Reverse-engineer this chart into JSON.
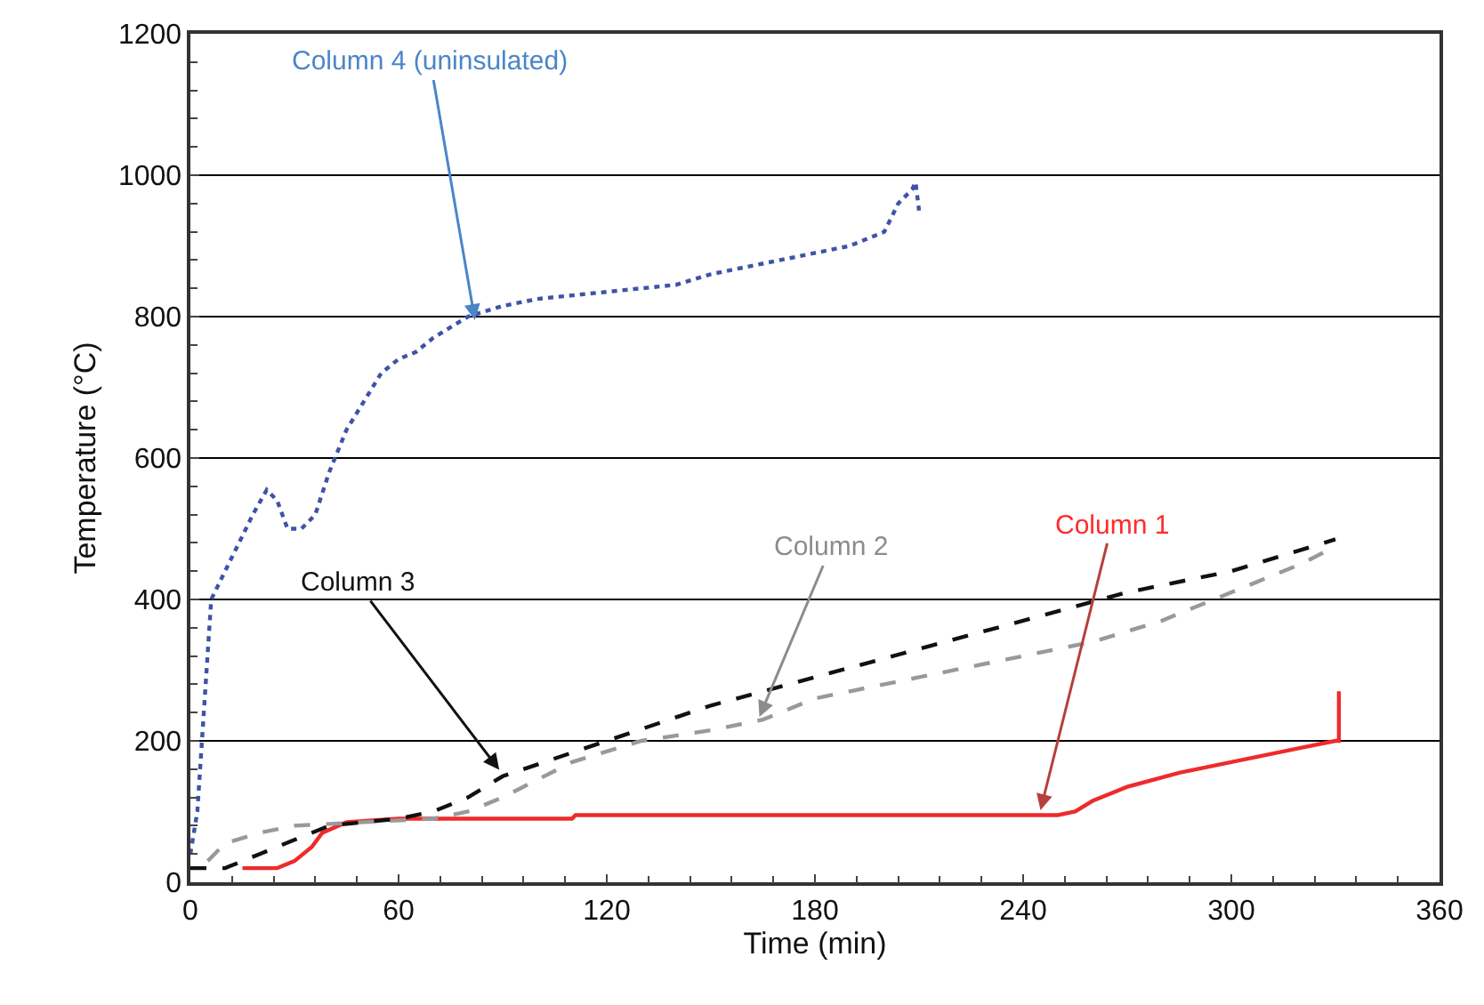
{
  "chart_data": {
    "type": "line",
    "xlabel": "Time (min)",
    "ylabel": "Temperature (°C)",
    "xlim": [
      0,
      360
    ],
    "xticks": [
      0,
      60,
      120,
      180,
      240,
      300,
      360
    ],
    "ylim": [
      0,
      1200
    ],
    "yticks": [
      0,
      200,
      400,
      600,
      800,
      1000,
      1200
    ],
    "grid": "y",
    "legend": false,
    "series": [
      {
        "color": "#ee2b2b",
        "line_style": "solid",
        "x": [
          15,
          25,
          30,
          35,
          38,
          45,
          60,
          110,
          111,
          240,
          250,
          255,
          260,
          270,
          285,
          300,
          320,
          330,
          331,
          331
        ],
        "values": [
          20,
          20,
          30,
          50,
          70,
          85,
          90,
          90,
          95,
          95,
          95,
          100,
          115,
          135,
          155,
          170,
          190,
          200,
          200,
          270
        ]
      },
      {
        "color": "#999999",
        "line_style": "dashed",
        "x": [
          5,
          10,
          20,
          30,
          50,
          70,
          80,
          90,
          110,
          130,
          150,
          165,
          180,
          210,
          240,
          260,
          280,
          300,
          320,
          330
        ],
        "values": [
          30,
          55,
          70,
          80,
          85,
          90,
          100,
          120,
          170,
          200,
          215,
          230,
          260,
          290,
          320,
          340,
          370,
          410,
          450,
          475
        ]
      },
      {
        "color": "#111111",
        "line_style": "dashed",
        "x": [
          0,
          10,
          20,
          30,
          40,
          60,
          70,
          80,
          90,
          120,
          150,
          180,
          210,
          240,
          270,
          300,
          330
        ],
        "values": [
          20,
          20,
          40,
          60,
          80,
          90,
          100,
          120,
          150,
          200,
          250,
          290,
          330,
          370,
          410,
          440,
          485
        ]
      },
      {
        "color": "#3d54a6",
        "line_style": "dotted",
        "x": [
          0,
          2,
          4,
          6,
          8,
          12,
          18,
          22,
          25,
          28,
          32,
          36,
          40,
          45,
          50,
          55,
          60,
          65,
          70,
          80,
          90,
          100,
          110,
          120,
          130,
          140,
          150,
          160,
          170,
          180,
          190,
          200,
          204,
          208,
          209,
          210
        ],
        "values": [
          40,
          100,
          250,
          400,
          420,
          460,
          520,
          555,
          540,
          500,
          500,
          520,
          580,
          640,
          680,
          720,
          740,
          750,
          770,
          800,
          815,
          825,
          830,
          835,
          840,
          845,
          860,
          870,
          880,
          890,
          900,
          920,
          960,
          980,
          990,
          950
        ]
      }
    ],
    "annotations": [
      {
        "text": "Column 1",
        "x": 245,
        "y": 102
      },
      {
        "text": "Column 2",
        "x": 164,
        "y": 234
      },
      {
        "text": "Column 3",
        "x": 89,
        "y": 159
      },
      {
        "text": "Column 4 (uninsulated)",
        "x": 82,
        "y": 795
      }
    ]
  }
}
